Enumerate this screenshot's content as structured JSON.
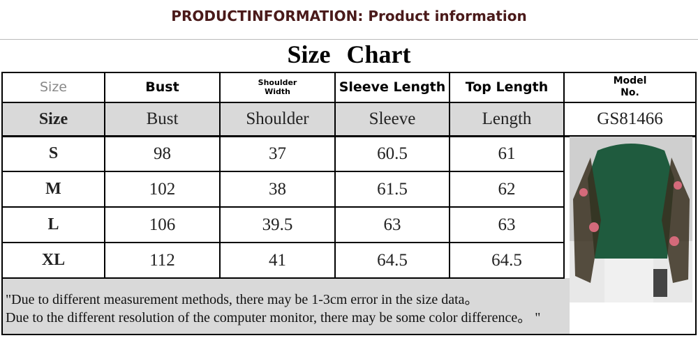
{
  "header": {
    "title": "PRODUCTINFORMATION: Product information"
  },
  "chart_title": "Size Chart",
  "table": {
    "header_en": [
      "Size",
      "Bust",
      "Shoulder Width",
      "Sleeve Length",
      "Top Length",
      "Model No."
    ],
    "header": [
      "Size",
      "Bust",
      "Shoulder",
      "Sleeve",
      "Length",
      "GS81466"
    ],
    "rows": [
      [
        "S",
        98,
        37,
        60.5,
        61
      ],
      [
        "M",
        102,
        38,
        61.5,
        62
      ],
      [
        "L",
        106,
        39.5,
        63,
        63
      ],
      [
        "XL",
        112,
        41,
        64.5,
        64.5
      ]
    ]
  },
  "note": [
    "\"Due to different measurement methods, there may be 1-3cm error in the size data。",
    "Due to the different resolution of the computer monitor, there may be some color difference。 \""
  ]
}
